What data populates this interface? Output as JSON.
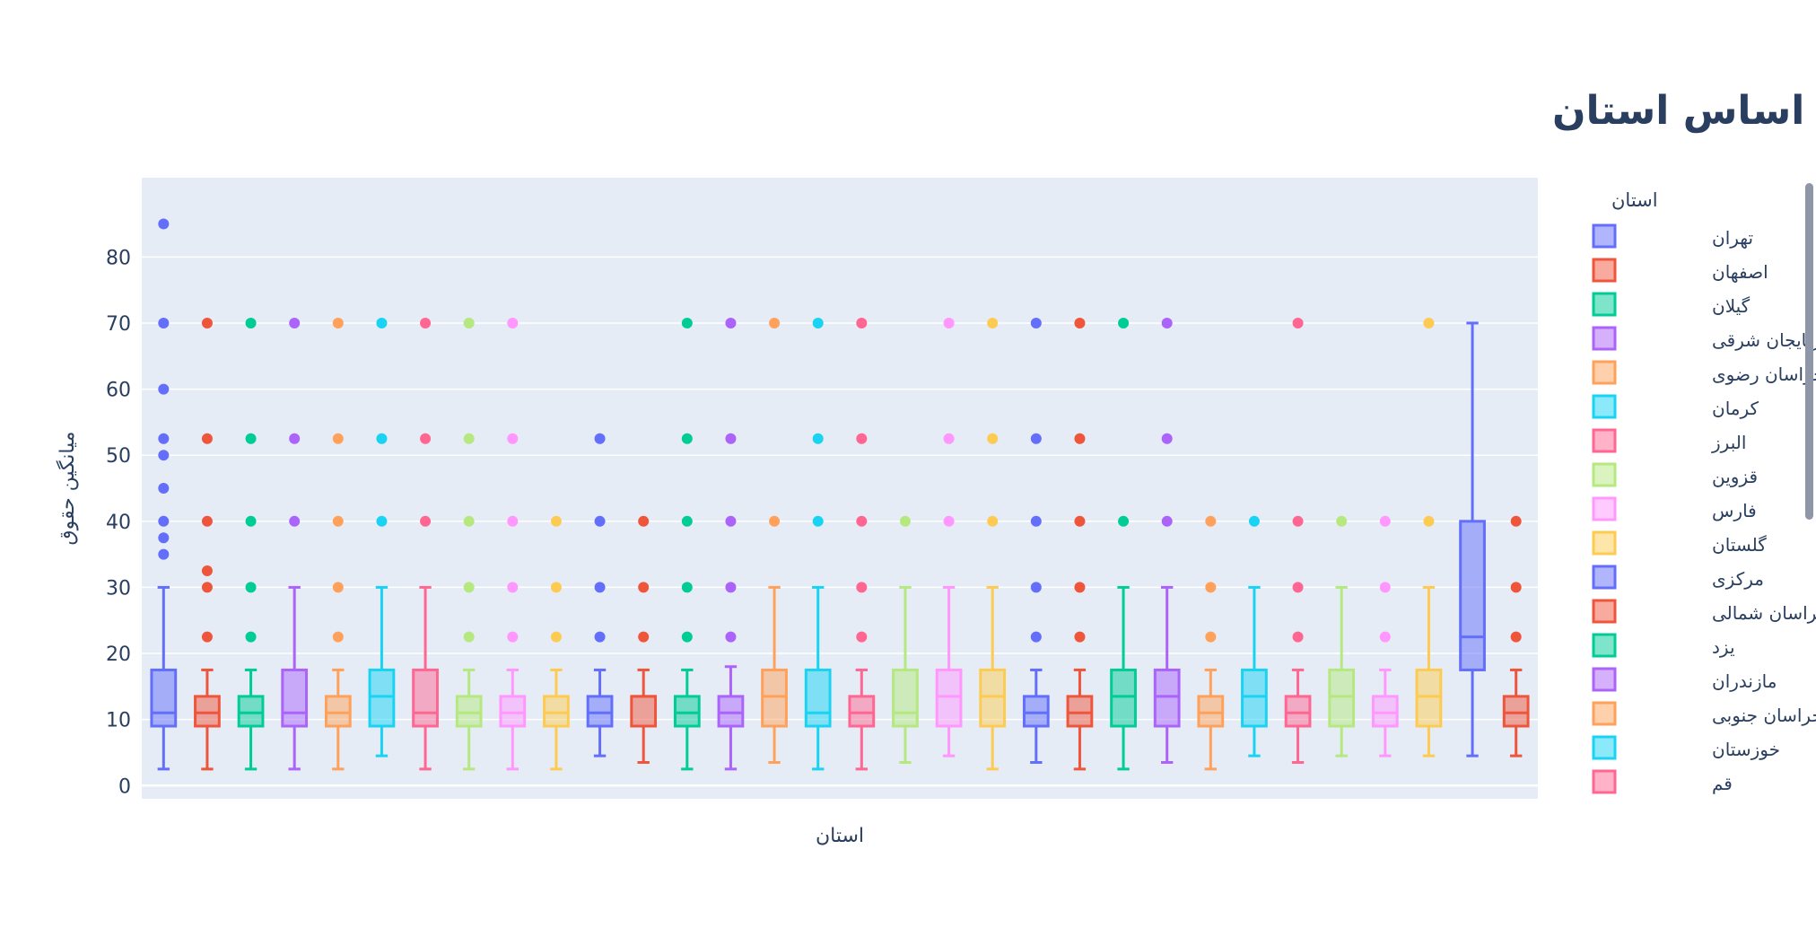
{
  "chart_data": {
    "type": "box",
    "title": "توزیع حقوق بر اساس استان",
    "xlabel": "استان",
    "ylabel": "میانگین حقوق",
    "legend_title": "استان",
    "legend_position": "right",
    "ylim": [
      -2,
      92
    ],
    "yticks": [
      0,
      10,
      20,
      30,
      40,
      50,
      60,
      70,
      80
    ],
    "grid": true,
    "series": [
      {
        "name": "تهران",
        "color": "#636EFA",
        "min": 2.5,
        "q1": 9,
        "median": 11,
        "q3": 17.5,
        "max": 30,
        "outliers": [
          35,
          37.5,
          40,
          45,
          50,
          52.5,
          60,
          70,
          85
        ]
      },
      {
        "name": "اصفهان",
        "color": "#EF553B",
        "min": 2.5,
        "q1": 9,
        "median": 11,
        "q3": 13.5,
        "max": 17.5,
        "outliers": [
          22.5,
          30,
          32.5,
          40,
          52.5,
          70
        ]
      },
      {
        "name": "گیلان",
        "color": "#00CC96",
        "min": 2.5,
        "q1": 9,
        "median": 11,
        "q3": 13.5,
        "max": 17.5,
        "outliers": [
          22.5,
          30,
          40,
          52.5,
          70
        ]
      },
      {
        "name": "آذربایجان شرقی",
        "color": "#AB63FA",
        "min": 2.5,
        "q1": 9,
        "median": 11,
        "q3": 17.5,
        "max": 30,
        "outliers": [
          40,
          52.5,
          70
        ]
      },
      {
        "name": "خراسان رضوی",
        "color": "#FFA15A",
        "min": 2.5,
        "q1": 9,
        "median": 11,
        "q3": 13.5,
        "max": 17.5,
        "outliers": [
          22.5,
          30,
          40,
          52.5,
          70
        ]
      },
      {
        "name": "کرمان",
        "color": "#19D3F3",
        "min": 4.5,
        "q1": 9,
        "median": 13.5,
        "q3": 17.5,
        "max": 30,
        "outliers": [
          40,
          52.5,
          70
        ]
      },
      {
        "name": "البرز",
        "color": "#FF6692",
        "min": 2.5,
        "q1": 9,
        "median": 11,
        "q3": 17.5,
        "max": 30,
        "outliers": [
          40,
          52.5,
          70
        ]
      },
      {
        "name": "قزوین",
        "color": "#B6E880",
        "min": 2.5,
        "q1": 9,
        "median": 11,
        "q3": 13.5,
        "max": 17.5,
        "outliers": [
          22.5,
          30,
          40,
          52.5,
          70
        ]
      },
      {
        "name": "فارس",
        "color": "#FF97FF",
        "min": 2.5,
        "q1": 9,
        "median": 11,
        "q3": 13.5,
        "max": 17.5,
        "outliers": [
          22.5,
          30,
          40,
          52.5,
          70
        ]
      },
      {
        "name": "گلستان",
        "color": "#FECB52",
        "min": 2.5,
        "q1": 9,
        "median": 11,
        "q3": 13.5,
        "max": 17.5,
        "outliers": [
          22.5,
          30,
          40
        ]
      },
      {
        "name": "مرکزی",
        "color": "#636EFA",
        "min": 4.5,
        "q1": 9,
        "median": 11,
        "q3": 13.5,
        "max": 17.5,
        "outliers": [
          22.5,
          30,
          40,
          52.5
        ]
      },
      {
        "name": "خراسان شمالی",
        "color": "#EF553B",
        "min": 3.5,
        "q1": 9,
        "median": 13.5,
        "q3": 13.5,
        "max": 17.5,
        "outliers": [
          22.5,
          30,
          40
        ]
      },
      {
        "name": "یزد",
        "color": "#00CC96",
        "min": 2.5,
        "q1": 9,
        "median": 11,
        "q3": 13.5,
        "max": 17.5,
        "outliers": [
          22.5,
          30,
          40,
          52.5,
          70
        ]
      },
      {
        "name": "مازندران",
        "color": "#AB63FA",
        "min": 2.5,
        "q1": 9,
        "median": 11,
        "q3": 13.5,
        "max": 18,
        "outliers": [
          22.5,
          30,
          40,
          52.5,
          70
        ]
      },
      {
        "name": "خراسان جنوبی",
        "color": "#FFA15A",
        "min": 3.5,
        "q1": 9,
        "median": 13.5,
        "q3": 17.5,
        "max": 30,
        "outliers": [
          40,
          70
        ]
      },
      {
        "name": "خوزستان",
        "color": "#19D3F3",
        "min": 2.5,
        "q1": 9,
        "median": 11,
        "q3": 17.5,
        "max": 30,
        "outliers": [
          40,
          52.5,
          70
        ]
      },
      {
        "name": "قم",
        "color": "#FF6692",
        "min": 2.5,
        "q1": 9,
        "median": 11,
        "q3": 13.5,
        "max": 17.5,
        "outliers": [
          22.5,
          30,
          40,
          52.5,
          70
        ]
      },
      {
        "color": "#B6E880",
        "min": 3.5,
        "q1": 9,
        "median": 11,
        "q3": 17.5,
        "max": 30,
        "outliers": [
          40
        ]
      },
      {
        "color": "#FF97FF",
        "min": 4.5,
        "q1": 9,
        "median": 13.5,
        "q3": 17.5,
        "max": 30,
        "outliers": [
          40,
          52.5,
          70
        ]
      },
      {
        "color": "#FECB52",
        "min": 2.5,
        "q1": 9,
        "median": 13.5,
        "q3": 17.5,
        "max": 30,
        "outliers": [
          40,
          52.5,
          70
        ]
      },
      {
        "color": "#636EFA",
        "min": 3.5,
        "q1": 9,
        "median": 11,
        "q3": 13.5,
        "max": 17.5,
        "outliers": [
          22.5,
          30,
          40,
          52.5,
          70
        ]
      },
      {
        "color": "#EF553B",
        "min": 2.5,
        "q1": 9,
        "median": 11,
        "q3": 13.5,
        "max": 17.5,
        "outliers": [
          22.5,
          30,
          40,
          52.5,
          70
        ]
      },
      {
        "color": "#00CC96",
        "min": 2.5,
        "q1": 9,
        "median": 13.5,
        "q3": 17.5,
        "max": 30,
        "outliers": [
          40,
          70
        ]
      },
      {
        "color": "#AB63FA",
        "min": 3.5,
        "q1": 9,
        "median": 13.5,
        "q3": 17.5,
        "max": 30,
        "outliers": [
          40,
          52.5,
          70
        ]
      },
      {
        "color": "#FFA15A",
        "min": 2.5,
        "q1": 9,
        "median": 11,
        "q3": 13.5,
        "max": 17.5,
        "outliers": [
          22.5,
          30,
          40
        ]
      },
      {
        "color": "#19D3F3",
        "min": 4.5,
        "q1": 9,
        "median": 13.5,
        "q3": 17.5,
        "max": 30,
        "outliers": [
          40
        ]
      },
      {
        "color": "#FF6692",
        "min": 3.5,
        "q1": 9,
        "median": 11,
        "q3": 13.5,
        "max": 17.5,
        "outliers": [
          22.5,
          30,
          40,
          70
        ]
      },
      {
        "color": "#B6E880",
        "min": 4.5,
        "q1": 9,
        "median": 13.5,
        "q3": 17.5,
        "max": 30,
        "outliers": [
          40
        ]
      },
      {
        "color": "#FF97FF",
        "min": 4.5,
        "q1": 9,
        "median": 11,
        "q3": 13.5,
        "max": 17.5,
        "outliers": [
          22.5,
          30,
          40
        ]
      },
      {
        "color": "#FECB52",
        "min": 4.5,
        "q1": 9,
        "median": 13.5,
        "q3": 17.5,
        "max": 30,
        "outliers": [
          40,
          70
        ]
      },
      {
        "color": "#636EFA",
        "min": 4.5,
        "q1": 17.5,
        "median": 22.5,
        "q3": 40,
        "max": 70,
        "outliers": []
      },
      {
        "color": "#EF553B",
        "min": 4.5,
        "q1": 9,
        "median": 11,
        "q3": 13.5,
        "max": 17.5,
        "outliers": [
          22.5,
          30,
          40
        ]
      }
    ]
  },
  "colors": {
    "plot_bg": "#E5ECF6",
    "grid": "#ffffff",
    "text": "#2a3f5f",
    "scrollbar": "#8f96a8"
  }
}
